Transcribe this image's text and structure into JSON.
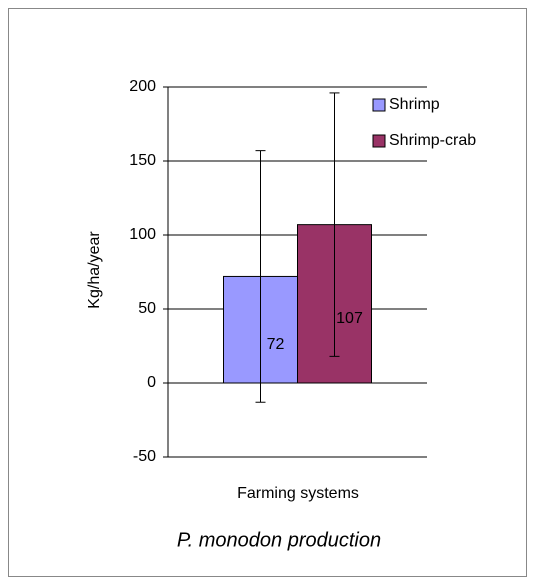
{
  "chart_data": {
    "type": "bar",
    "title": "P. monodon production",
    "x_label": "Farming systems",
    "y_label": "Kg/ha/year",
    "categories": [
      null
    ],
    "series": [
      {
        "name": "Shrimp",
        "color": "#9999ff",
        "values": [
          72
        ],
        "errors": [
          85
        ]
      },
      {
        "name": "Shrimp-crab",
        "color": "#993366",
        "values": [
          107
        ],
        "errors": [
          89
        ]
      }
    ],
    "ylim": [
      -50,
      200
    ],
    "yticks": [
      -50,
      0,
      50,
      100,
      150,
      200
    ],
    "grid": true,
    "legend": "upper right"
  }
}
